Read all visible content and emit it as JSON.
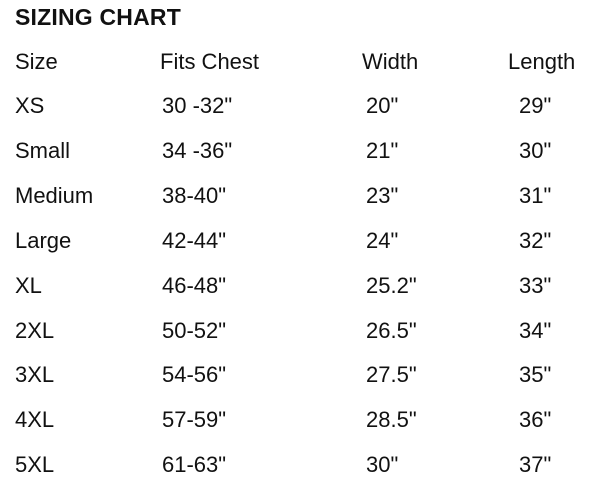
{
  "title": "SIZING CHART",
  "headers": [
    "Size",
    "Fits Chest",
    "Width",
    "Length"
  ],
  "rows": [
    [
      "XS",
      "30 -32\"",
      "20\"",
      "29\""
    ],
    [
      "Small",
      "34 -36\"",
      "21\"",
      "30\""
    ],
    [
      "Medium",
      "38-40\"",
      "23\"",
      "31\""
    ],
    [
      "Large",
      "42-44\"",
      "24\"",
      "32\""
    ],
    [
      "XL",
      "46-48\"",
      "25.2\"",
      "33\""
    ],
    [
      "2XL",
      "50-52\"",
      "26.5\"",
      "34\""
    ],
    [
      "3XL",
      "54-56\"",
      "27.5\"",
      "35\""
    ],
    [
      "4XL",
      "57-59\"",
      "28.5\"",
      "36\""
    ],
    [
      "5XL",
      "61-63\"",
      "30\"",
      "37\""
    ]
  ]
}
